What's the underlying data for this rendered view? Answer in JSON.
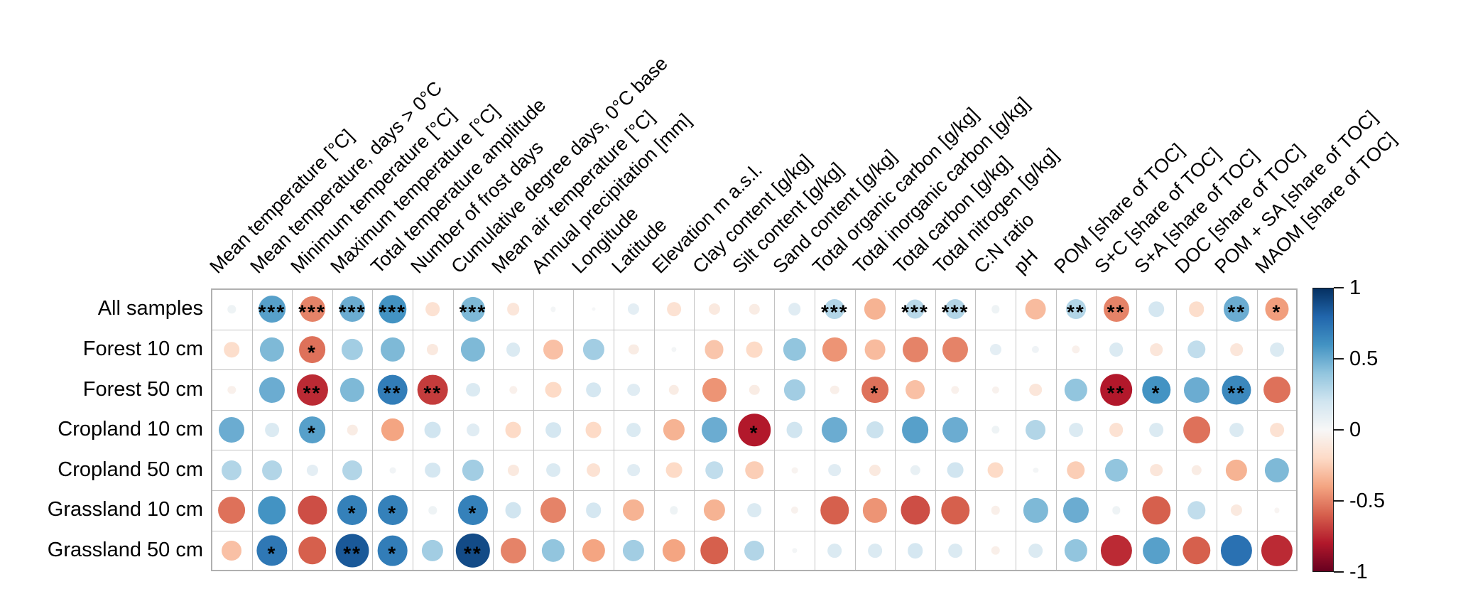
{
  "chart_data": {
    "type": "heatmap",
    "subtype": "correlation-bubble-matrix",
    "title": "",
    "x_labels_rotation": 45,
    "grid": true,
    "legend_position": "right",
    "rows": [
      "All samples",
      "Forest 10 cm",
      "Forest 50 cm",
      "Cropland 10 cm",
      "Cropland 50 cm",
      "Grassland 10 cm",
      "Grassland 50 cm"
    ],
    "columns": [
      "Mean temperature [°C]",
      "Mean temperature, days > 0°C",
      "Minimum temperature [°C]",
      "Maximum temperature [°C]",
      "Total temperature amplitude",
      "Number of frost days",
      "Cumulative degree days, 0°C base",
      "Mean air temperature [°C]",
      "Annual precipitation [mm]",
      "Longitude",
      "Latitude",
      "Elevation m a.s.l.",
      "Clay content [g/kg]",
      "Silt content [g/kg]",
      "Sand content [g/kg]",
      "Total organic carbon [g/kg]",
      "Total inorganic carbon [g/kg]",
      "Total carbon [g/kg]",
      "Total nitrogen [g/kg]",
      "C:N ratio",
      "pH",
      "POM [share of TOC]",
      "S+C [share of TOC]",
      "S+A [share of TOC]",
      "DOC [share of TOC]",
      "POM + SA [share of TOC]",
      "MAOM [share of TOC]"
    ],
    "series": [
      {
        "name": "All samples",
        "values": [
          0.05,
          0.55,
          -0.5,
          0.5,
          0.6,
          -0.15,
          0.45,
          -0.12,
          0.02,
          0.01,
          0.1,
          -0.15,
          -0.1,
          -0.08,
          0.12,
          0.3,
          -0.35,
          0.28,
          0.3,
          0.05,
          -0.32,
          0.3,
          -0.5,
          0.18,
          -0.18,
          0.5,
          -0.42
        ],
        "stars": [
          "",
          "***",
          "***",
          "***",
          "***",
          "",
          "***",
          "",
          "",
          "",
          "",
          "",
          "",
          "",
          "",
          "***",
          "",
          "***",
          "***",
          "",
          "",
          "**",
          "**",
          "",
          "",
          "**",
          "*"
        ]
      },
      {
        "name": "Forest 10 cm",
        "values": [
          -0.18,
          0.45,
          -0.55,
          0.35,
          0.45,
          -0.1,
          0.45,
          0.15,
          -0.3,
          0.35,
          -0.08,
          0.02,
          -0.28,
          -0.2,
          0.4,
          -0.45,
          -0.32,
          -0.5,
          -0.5,
          0.1,
          0.04,
          -0.05,
          0.15,
          -0.12,
          0.25,
          -0.12,
          0.15
        ],
        "stars": [
          "",
          "",
          "*",
          "",
          "",
          "",
          "",
          "",
          "",
          "",
          "",
          "",
          "",
          "",
          "",
          "",
          "",
          "",
          "",
          "",
          "",
          "",
          "",
          "",
          "",
          "",
          ""
        ]
      },
      {
        "name": "Forest 50 cm",
        "values": [
          -0.05,
          0.5,
          -0.75,
          0.45,
          0.7,
          -0.7,
          0.15,
          -0.05,
          -0.2,
          0.18,
          0.12,
          -0.08,
          -0.45,
          -0.08,
          0.35,
          -0.06,
          -0.55,
          -0.3,
          -0.05,
          -0.04,
          -0.12,
          0.4,
          -0.8,
          0.6,
          0.5,
          0.65,
          -0.55
        ],
        "stars": [
          "",
          "",
          "**",
          "",
          "**",
          "**",
          "",
          "",
          "",
          "",
          "",
          "",
          "",
          "",
          "",
          "",
          "*",
          "",
          "",
          "",
          "",
          "",
          "**",
          "*",
          "",
          "**",
          ""
        ]
      },
      {
        "name": "Cropland 10 cm",
        "values": [
          0.5,
          0.15,
          0.55,
          -0.08,
          -0.4,
          0.2,
          0.12,
          -0.2,
          0.18,
          -0.2,
          0.15,
          -0.35,
          0.5,
          -0.8,
          0.2,
          0.5,
          0.22,
          0.55,
          0.5,
          0.05,
          0.3,
          0.15,
          -0.15,
          0.15,
          -0.55,
          0.15,
          -0.15
        ],
        "stars": [
          "",
          "",
          "*",
          "",
          "",
          "",
          "",
          "",
          "",
          "",
          "",
          "",
          "",
          "*",
          "",
          "",
          "",
          "",
          "",
          "",
          "",
          "",
          "",
          "",
          "",
          "",
          ""
        ]
      },
      {
        "name": "Cropland 50 cm",
        "values": [
          0.3,
          0.3,
          0.1,
          0.3,
          0.03,
          0.18,
          0.35,
          -0.1,
          0.15,
          -0.15,
          0.12,
          -0.2,
          0.25,
          -0.25,
          -0.03,
          0.12,
          -0.1,
          0.08,
          0.2,
          -0.2,
          0.02,
          -0.25,
          0.4,
          -0.12,
          -0.08,
          -0.35,
          0.45
        ],
        "stars": [
          "",
          "",
          "",
          "",
          "",
          "",
          "",
          "",
          "",
          "",
          "",
          "",
          "",
          "",
          "",
          "",
          "",
          "",
          "",
          "",
          "",
          "",
          "",
          "",
          "",
          "",
          ""
        ]
      },
      {
        "name": "Grassland 10 cm",
        "values": [
          -0.55,
          0.6,
          -0.65,
          0.68,
          0.68,
          0.05,
          0.68,
          0.2,
          -0.5,
          0.18,
          -0.35,
          0.05,
          -0.35,
          0.15,
          -0.04,
          -0.6,
          -0.45,
          -0.65,
          -0.6,
          -0.06,
          0.45,
          0.5,
          0.05,
          -0.6,
          0.25,
          -0.1,
          -0.02
        ],
        "stars": [
          "",
          "",
          "",
          "*",
          "*",
          "",
          "*",
          "",
          "",
          "",
          "",
          "",
          "",
          "",
          "",
          "",
          "",
          "",
          "",
          "",
          "",
          "",
          "",
          "",
          "",
          "",
          ""
        ]
      },
      {
        "name": "Grassland 50 cm",
        "values": [
          -0.3,
          0.72,
          -0.6,
          0.85,
          0.7,
          0.35,
          0.9,
          -0.5,
          0.4,
          -0.4,
          0.35,
          -0.4,
          -0.6,
          0.3,
          0.02,
          0.15,
          0.15,
          0.18,
          0.15,
          -0.06,
          0.15,
          0.4,
          -0.75,
          0.55,
          -0.6,
          0.75,
          -0.75
        ],
        "stars": [
          "",
          "*",
          "",
          "**",
          "*",
          "",
          "**",
          "",
          "",
          "",
          "",
          "",
          "",
          "",
          "",
          "",
          "",
          "",
          "",
          "",
          "",
          "",
          "",
          "",
          "",
          "",
          ""
        ]
      }
    ],
    "value_range": [
      -1,
      1
    ],
    "legend": {
      "ticks": [
        {
          "label": "1",
          "value": 1
        },
        {
          "label": "0.5",
          "value": 0.5
        },
        {
          "label": "0",
          "value": 0
        },
        {
          "label": "-0.5",
          "value": -0.5
        },
        {
          "label": "-1",
          "value": -1
        }
      ]
    },
    "palette": {
      "name": "RdBu",
      "anchors": [
        "#67001f",
        "#b2182b",
        "#d6604d",
        "#f4a582",
        "#fddbc7",
        "#f7f7f7",
        "#d1e5f0",
        "#92c5de",
        "#4393c3",
        "#2166ac",
        "#053061"
      ],
      "negative_extreme": "#67001f",
      "zero": "#f7f7f7",
      "positive_extreme": "#053061",
      "grid_line_color": "#c2c2c2",
      "star_color": "#000000"
    }
  }
}
